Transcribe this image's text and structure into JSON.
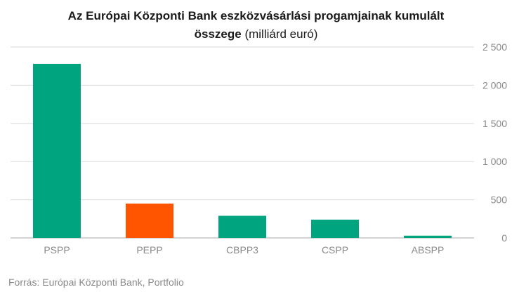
{
  "title": {
    "line1": "Az Európai Központi Bank eszközvásárlási progamjainak kumulált",
    "line2_bold": "összege",
    "line2_normal": " (milliárd euró)"
  },
  "source": "Forrás: Európai Központi Bank, Portfolio",
  "colors": {
    "default_bar": "#00a57f",
    "highlight_bar": "#ff5500"
  },
  "chart_data": {
    "type": "bar",
    "title": "Az Európai Központi Bank eszközvásárlási progamjainak kumulált összege (milliárd euró)",
    "categories": [
      "PSPP",
      "PEPP",
      "CBPP3",
      "CSPP",
      "ABSPP"
    ],
    "values": [
      2280,
      450,
      290,
      240,
      30
    ],
    "highlight": [
      "PEPP"
    ],
    "ylim": [
      0,
      2500
    ],
    "yticks": [
      0,
      500,
      1000,
      1500,
      2000,
      2500
    ],
    "ytick_labels": [
      "0",
      "500",
      "1 000",
      "1 500",
      "2 000",
      "2 500"
    ],
    "y_axis_side": "right",
    "grid": true,
    "xlabel": "",
    "ylabel": ""
  }
}
